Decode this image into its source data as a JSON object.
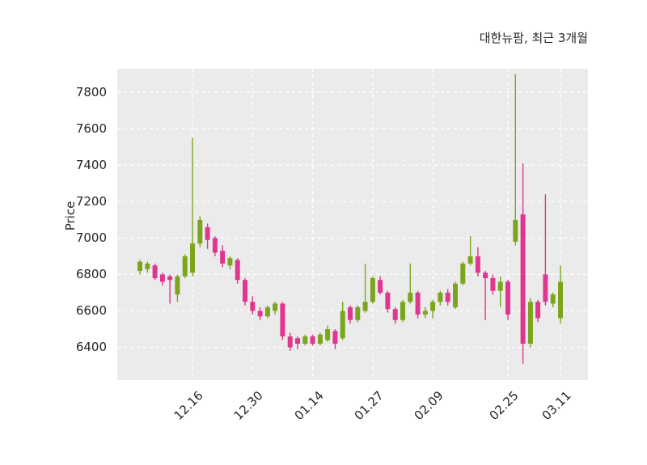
{
  "chart_data": {
    "type": "candlestick",
    "title": "대한뉴팜, 최근 3개월",
    "ylabel": "Price",
    "ylim": [
      6220,
      7930
    ],
    "yticks": [
      6400,
      6600,
      6800,
      7000,
      7200,
      7400,
      7600,
      7800
    ],
    "xticks": [
      {
        "label": "12.16",
        "index": 7
      },
      {
        "label": "12.30",
        "index": 15
      },
      {
        "label": "01.14",
        "index": 23
      },
      {
        "label": "01.27",
        "index": 31
      },
      {
        "label": "02.09",
        "index": 39
      },
      {
        "label": "02.25",
        "index": 49
      },
      {
        "label": "03.11",
        "index": 56
      }
    ],
    "up_color": "#7aa51c",
    "down_color": "#e0368f",
    "plot_bg": "#ebebeb",
    "grid_color": "#ffffff",
    "grid": true,
    "candle_format": "ohlc",
    "candles": [
      [
        6820,
        6880,
        6800,
        6870
      ],
      [
        6830,
        6870,
        6810,
        6860
      ],
      [
        6850,
        6860,
        6770,
        6780
      ],
      [
        6800,
        6810,
        6740,
        6760
      ],
      [
        6790,
        6800,
        6640,
        6770
      ],
      [
        6690,
        6800,
        6650,
        6790
      ],
      [
        6790,
        6910,
        6780,
        6900
      ],
      [
        6810,
        7550,
        6790,
        6970
      ],
      [
        6970,
        7120,
        6950,
        7100
      ],
      [
        7060,
        7080,
        6940,
        6990
      ],
      [
        7000,
        7010,
        6900,
        6920
      ],
      [
        6930,
        6960,
        6840,
        6860
      ],
      [
        6850,
        6900,
        6830,
        6890
      ],
      [
        6880,
        6890,
        6750,
        6770
      ],
      [
        6770,
        6780,
        6630,
        6650
      ],
      [
        6650,
        6680,
        6580,
        6600
      ],
      [
        6600,
        6620,
        6550,
        6570
      ],
      [
        6570,
        6630,
        6560,
        6620
      ],
      [
        6600,
        6650,
        6580,
        6640
      ],
      [
        6640,
        6650,
        6440,
        6460
      ],
      [
        6460,
        6480,
        6380,
        6400
      ],
      [
        6450,
        6460,
        6390,
        6420
      ],
      [
        6420,
        6470,
        6410,
        6460
      ],
      [
        6460,
        6470,
        6410,
        6420
      ],
      [
        6420,
        6480,
        6410,
        6470
      ],
      [
        6440,
        6520,
        6430,
        6500
      ],
      [
        6490,
        6500,
        6390,
        6420
      ],
      [
        6450,
        6650,
        6440,
        6600
      ],
      [
        6620,
        6630,
        6530,
        6550
      ],
      [
        6550,
        6630,
        6540,
        6620
      ],
      [
        6600,
        6860,
        6590,
        6650
      ],
      [
        6650,
        6790,
        6640,
        6780
      ],
      [
        6770,
        6790,
        6690,
        6700
      ],
      [
        6700,
        6710,
        6590,
        6610
      ],
      [
        6610,
        6620,
        6530,
        6550
      ],
      [
        6550,
        6660,
        6540,
        6650
      ],
      [
        6650,
        6860,
        6640,
        6700
      ],
      [
        6700,
        6710,
        6560,
        6580
      ],
      [
        6580,
        6620,
        6560,
        6600
      ],
      [
        6600,
        6660,
        6560,
        6650
      ],
      [
        6650,
        6710,
        6630,
        6700
      ],
      [
        6700,
        6720,
        6630,
        6650
      ],
      [
        6620,
        6760,
        6610,
        6750
      ],
      [
        6750,
        6870,
        6740,
        6860
      ],
      [
        6860,
        7010,
        6850,
        6900
      ],
      [
        6900,
        6950,
        6790,
        6810
      ],
      [
        6810,
        6820,
        6550,
        6780
      ],
      [
        6780,
        6800,
        6690,
        6710
      ],
      [
        6710,
        6790,
        6620,
        6760
      ],
      [
        6760,
        6770,
        6550,
        6580
      ],
      [
        6980,
        7900,
        6960,
        7100
      ],
      [
        7130,
        7410,
        6310,
        6420
      ],
      [
        6420,
        6670,
        6400,
        6650
      ],
      [
        6650,
        6660,
        6540,
        6560
      ],
      [
        6800,
        7240,
        6630,
        6650
      ],
      [
        6640,
        6700,
        6620,
        6690
      ],
      [
        6560,
        6850,
        6530,
        6760
      ]
    ]
  }
}
